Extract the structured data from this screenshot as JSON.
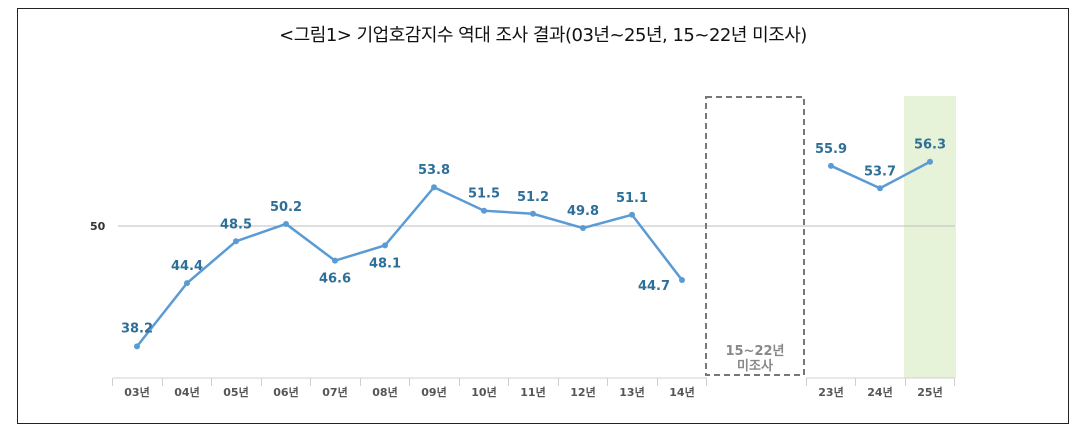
{
  "chart_data": {
    "type": "line",
    "title": "<그림1> 기업호감지수 역대 조사 결과(03년~25년, 15~22년 미조사)",
    "categories": [
      "03년",
      "04년",
      "05년",
      "06년",
      "07년",
      "08년",
      "09년",
      "10년",
      "11년",
      "12년",
      "13년",
      "14년",
      "23년",
      "24년",
      "25년"
    ],
    "series": [
      {
        "values": [
          38.2,
          44.4,
          48.5,
          50.2,
          46.6,
          48.1,
          53.8,
          51.5,
          51.2,
          49.8,
          51.1,
          44.7,
          55.9,
          53.7,
          56.3
        ]
      }
    ],
    "reference_line": {
      "value": 50,
      "label": "50"
    },
    "gap_annotation": {
      "line1": "15~22년",
      "line2": "미조사"
    },
    "highlight_category": "25년",
    "colors": {
      "line": "#5b9bd5",
      "value_label": "#2e6f97",
      "highlight": "#e6f3d8",
      "reference": "#bdbdbd"
    },
    "grid": false
  }
}
